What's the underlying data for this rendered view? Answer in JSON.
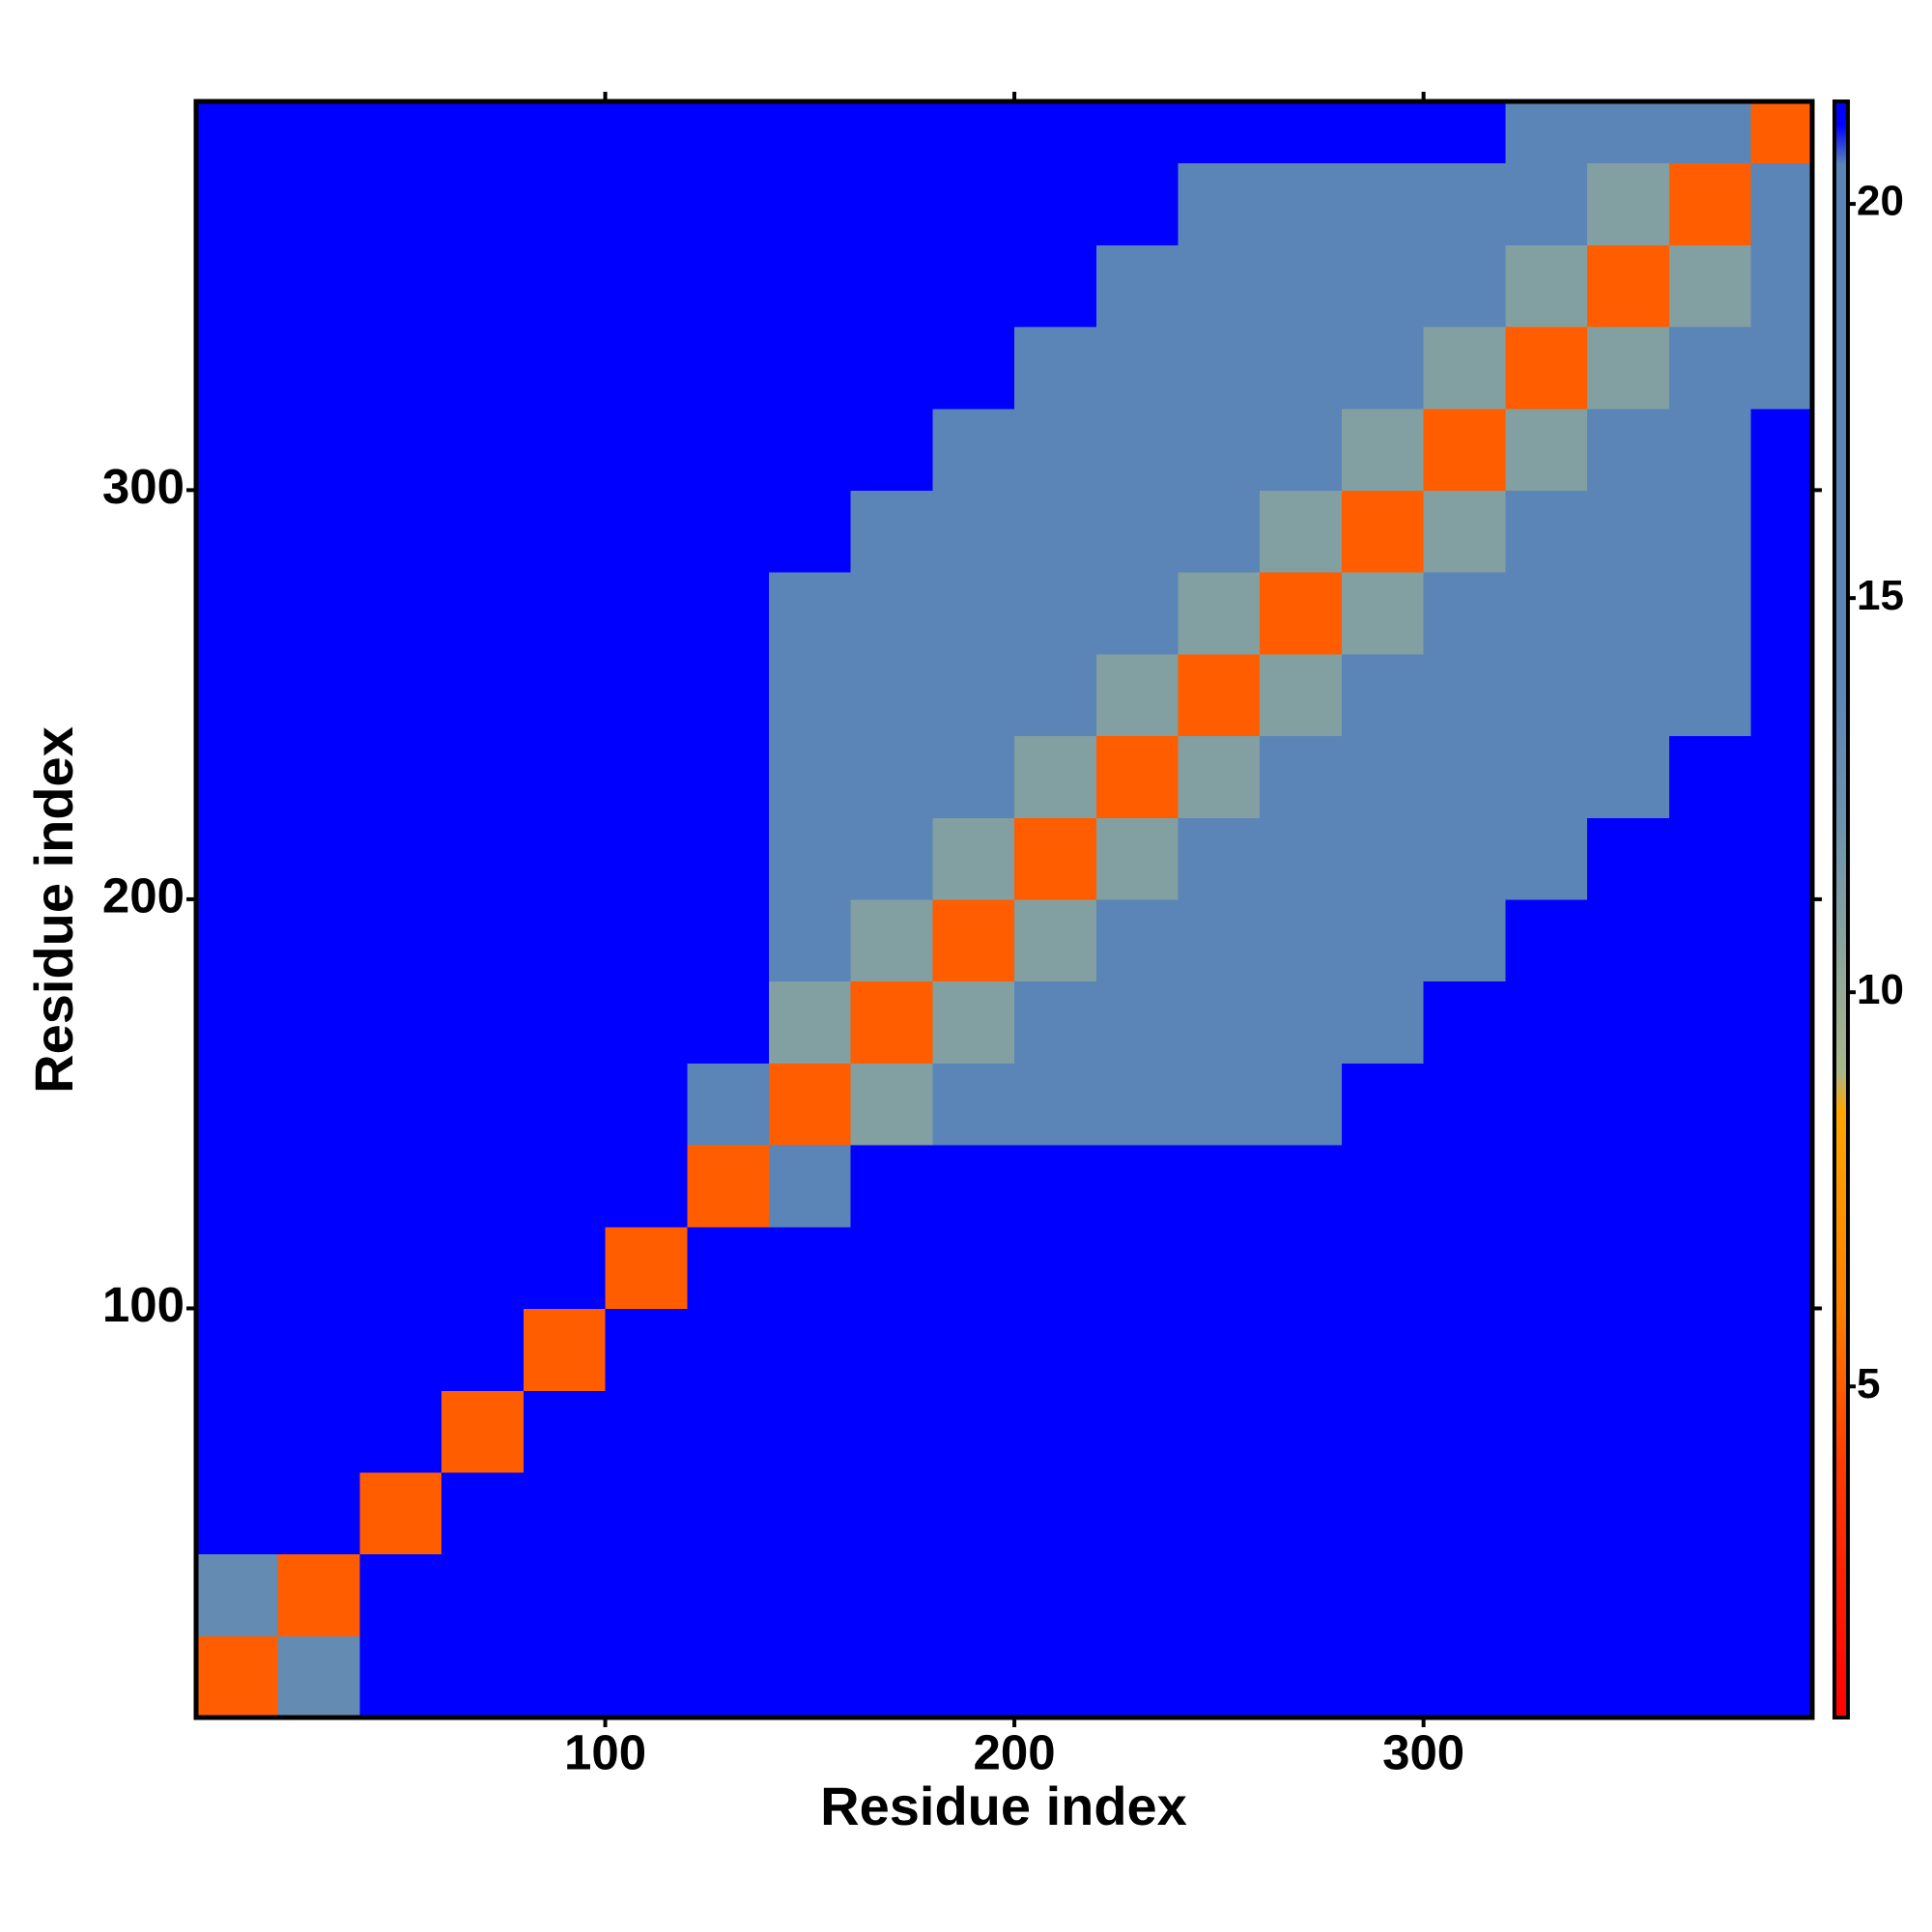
{
  "chart_data": {
    "type": "heatmap",
    "xlabel": "Residue index",
    "ylabel": "Residue index",
    "xbins": [
      0,
      20,
      40,
      60,
      80,
      100,
      120,
      140,
      160,
      180,
      200,
      220,
      240,
      260,
      280,
      300,
      320,
      340,
      360,
      380,
      395
    ],
    "ybins": [
      0,
      20,
      40,
      60,
      80,
      100,
      120,
      140,
      160,
      180,
      200,
      220,
      240,
      260,
      280,
      300,
      320,
      340,
      360,
      380,
      395
    ],
    "z": [
      [
        5,
        13,
        21.3,
        21.3,
        21.3,
        21.3,
        21.3,
        21.3,
        21.3,
        21.3,
        21.3,
        21.3,
        21.3,
        21.3,
        21.3,
        21.3,
        21.3,
        21.3,
        21.3,
        21.3
      ],
      [
        13,
        5,
        21.3,
        21.3,
        21.3,
        21.3,
        21.3,
        21.3,
        21.3,
        21.3,
        21.3,
        21.3,
        21.3,
        21.3,
        21.3,
        21.3,
        21.3,
        21.3,
        21.3,
        21.3
      ],
      [
        21.3,
        21.3,
        5,
        21.3,
        21.3,
        21.3,
        21.3,
        21.3,
        21.3,
        21.3,
        21.3,
        21.3,
        21.3,
        21.3,
        21.3,
        21.3,
        21.3,
        21.3,
        21.3,
        21.3
      ],
      [
        21.3,
        21.3,
        21.3,
        5,
        21.3,
        21.3,
        21.3,
        21.3,
        21.3,
        21.3,
        21.3,
        21.3,
        21.3,
        21.3,
        21.3,
        21.3,
        21.3,
        21.3,
        21.3,
        21.3
      ],
      [
        21.3,
        21.3,
        21.3,
        21.3,
        5,
        21.3,
        21.3,
        21.3,
        21.3,
        21.3,
        21.3,
        21.3,
        21.3,
        21.3,
        21.3,
        21.3,
        21.3,
        21.3,
        21.3,
        21.3
      ],
      [
        21.3,
        21.3,
        21.3,
        21.3,
        21.3,
        5,
        21.3,
        21.3,
        21.3,
        21.3,
        21.3,
        21.3,
        21.3,
        21.3,
        21.3,
        21.3,
        21.3,
        21.3,
        21.3,
        21.3
      ],
      [
        21.3,
        21.3,
        21.3,
        21.3,
        21.3,
        21.3,
        5,
        20,
        21.3,
        21.3,
        21.3,
        21.3,
        21.3,
        21.3,
        21.3,
        21.3,
        21.3,
        21.3,
        21.3,
        21.3
      ],
      [
        21.3,
        21.3,
        21.3,
        21.3,
        21.3,
        21.3,
        20,
        5,
        11,
        15,
        17,
        18,
        19,
        20.5,
        21.3,
        21.3,
        21.3,
        21.3,
        21.3,
        21.3
      ],
      [
        21.3,
        21.3,
        21.3,
        21.3,
        21.3,
        21.3,
        21.3,
        11,
        5,
        11,
        15,
        17,
        18,
        19,
        20.5,
        21.3,
        21.3,
        21.3,
        21.3,
        21.3
      ],
      [
        21.3,
        21.3,
        21.3,
        21.3,
        21.3,
        21.3,
        21.3,
        15,
        11,
        5,
        11,
        15,
        17,
        18,
        19,
        20.5,
        21.3,
        21.3,
        21.3,
        21.3
      ],
      [
        21.3,
        21.3,
        21.3,
        21.3,
        21.3,
        21.3,
        21.3,
        17,
        15,
        11,
        5,
        11,
        15,
        17,
        18,
        19,
        20.5,
        21.3,
        21.3,
        21.3
      ],
      [
        21.3,
        21.3,
        21.3,
        21.3,
        21.3,
        21.3,
        21.3,
        18,
        17,
        15,
        11,
        5,
        11,
        15,
        17,
        18,
        19,
        20.5,
        21.3,
        21.3
      ],
      [
        21.3,
        21.3,
        21.3,
        21.3,
        21.3,
        21.3,
        21.3,
        19,
        18,
        17,
        15,
        11,
        5,
        11,
        15,
        17,
        18,
        19,
        20.5,
        21.3
      ],
      [
        21.3,
        21.3,
        21.3,
        21.3,
        21.3,
        21.3,
        21.3,
        20.5,
        19,
        18,
        17,
        15,
        11,
        5,
        11,
        15,
        17,
        18,
        19,
        21.3
      ],
      [
        21.3,
        21.3,
        21.3,
        21.3,
        21.3,
        21.3,
        21.3,
        21.3,
        20.5,
        19,
        18,
        17,
        15,
        11,
        5,
        11,
        15,
        17,
        18,
        21.3
      ],
      [
        21.3,
        21.3,
        21.3,
        21.3,
        21.3,
        21.3,
        21.3,
        21.3,
        21.3,
        20.5,
        19,
        18,
        17,
        15,
        11,
        5,
        11,
        15,
        17,
        21.3
      ],
      [
        21.3,
        21.3,
        21.3,
        21.3,
        21.3,
        21.3,
        21.3,
        21.3,
        21.3,
        21.3,
        20.5,
        19,
        18,
        17,
        15,
        11,
        5,
        11,
        15,
        20.5
      ],
      [
        21.3,
        21.3,
        21.3,
        21.3,
        21.3,
        21.3,
        21.3,
        21.3,
        21.3,
        21.3,
        21.3,
        20.5,
        19,
        18,
        17,
        15,
        11,
        5,
        11,
        19
      ],
      [
        21.3,
        21.3,
        21.3,
        21.3,
        21.3,
        21.3,
        21.3,
        21.3,
        21.3,
        21.3,
        21.3,
        21.3,
        20.5,
        19,
        18,
        17,
        15,
        11,
        5,
        14
      ],
      [
        21.3,
        21.3,
        21.3,
        21.3,
        21.3,
        21.3,
        21.3,
        21.3,
        21.3,
        21.3,
        21.3,
        21.3,
        21.3,
        21.3,
        21.3,
        21.3,
        20.5,
        19,
        14,
        5
      ]
    ],
    "xlim": [
      0,
      395
    ],
    "ylim": [
      0,
      395
    ],
    "xticks": [
      100,
      200,
      300
    ],
    "yticks": [
      100,
      200,
      300
    ],
    "zlim": [
      0.8,
      21.3
    ],
    "zticks": [
      5,
      10,
      15,
      20
    ],
    "colorscale": [
      [
        0.8,
        "#ff0000"
      ],
      [
        4,
        "#ff3a00"
      ],
      [
        6,
        "#ff8000"
      ],
      [
        8.5,
        "#ffa500"
      ],
      [
        9,
        "#a9b68a"
      ],
      [
        12,
        "#6e93ad"
      ],
      [
        14,
        "#5a85b6"
      ],
      [
        20.5,
        "#5a85b6"
      ],
      [
        21,
        "#0000ff"
      ]
    ]
  }
}
